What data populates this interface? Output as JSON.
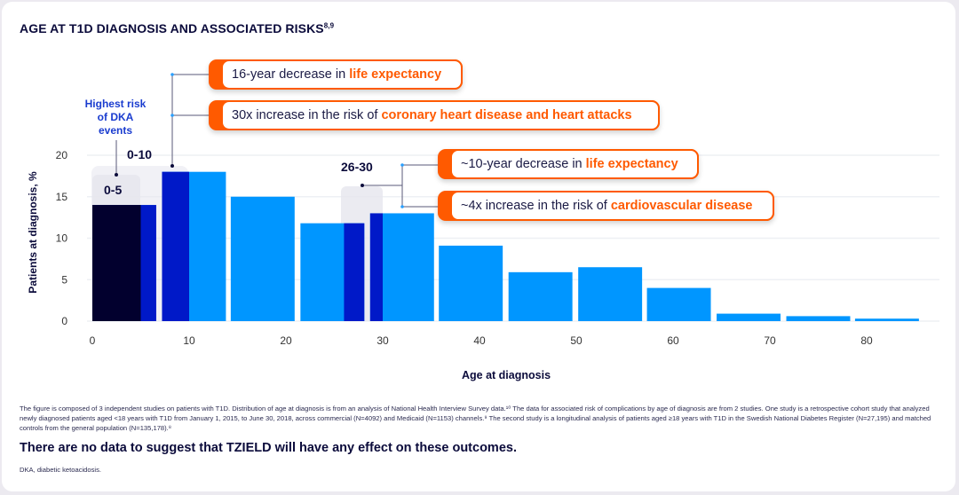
{
  "title": "AGE AT T1D DIAGNOSIS AND ASSOCIATED RISKS",
  "title_refs": "8,9",
  "colors": {
    "navy": "#02002e",
    "royal": "#0019c8",
    "light": "#0096ff",
    "orange": "#ff5a00",
    "highlight_box": "#e6e6ee"
  },
  "annotations": {
    "dka": "Highest risk of DKA events",
    "range_0_5": "0-5",
    "range_0_10": "0-10",
    "range_26_30": "26-30"
  },
  "callouts": [
    {
      "prefix": "16-year decrease in ",
      "highlight": "life expectancy"
    },
    {
      "prefix": "30x increase in the risk of ",
      "highlight": "coronary heart disease and heart attacks"
    },
    {
      "prefix": "~10-year decrease in ",
      "highlight": "life expectancy"
    },
    {
      "prefix": "~4x increase in the risk of ",
      "highlight": "cardiovascular disease"
    }
  ],
  "chart_data": {
    "type": "bar",
    "xlabel": "Age at diagnosis",
    "ylabel": "Patients at diagnosis, %",
    "xlim": [
      0,
      87
    ],
    "ylim": [
      0,
      20
    ],
    "xticks": [
      0,
      10,
      20,
      30,
      40,
      50,
      60,
      70,
      80
    ],
    "yticks": [
      0,
      5,
      10,
      15,
      20
    ],
    "grid": true,
    "bars": [
      {
        "age_start": 0,
        "age_end": 6.6,
        "value": 14.0
      },
      {
        "age_start": 7.2,
        "age_end": 13.8,
        "value": 18.0
      },
      {
        "age_start": 14.3,
        "age_end": 20.9,
        "value": 15.0
      },
      {
        "age_start": 21.5,
        "age_end": 28.1,
        "value": 11.8
      },
      {
        "age_start": 28.7,
        "age_end": 35.3,
        "value": 13.0
      },
      {
        "age_start": 35.8,
        "age_end": 42.4,
        "value": 9.1
      },
      {
        "age_start": 43.0,
        "age_end": 49.6,
        "value": 5.9
      },
      {
        "age_start": 50.2,
        "age_end": 56.8,
        "value": 6.5
      },
      {
        "age_start": 57.3,
        "age_end": 63.9,
        "value": 4.0
      },
      {
        "age_start": 64.5,
        "age_end": 71.1,
        "value": 0.9
      },
      {
        "age_start": 71.7,
        "age_end": 78.3,
        "value": 0.6
      },
      {
        "age_start": 78.8,
        "age_end": 85.4,
        "value": 0.3
      }
    ],
    "highlight_ranges": [
      {
        "label": "0-5",
        "from": 0,
        "to": 5,
        "color": "navy"
      },
      {
        "label": "0-10",
        "from": 0,
        "to": 10,
        "color": "royal"
      },
      {
        "label": "26-30",
        "from": 26,
        "to": 30,
        "color": "royal"
      }
    ]
  },
  "footnote": "The figure is composed of 3 independent studies on patients with T1D. Distribution of age at diagnosis is from an analysis of National Health Interview Survey data.¹⁰ The data for associated risk of complications by age of diagnosis are from 2 studies. One study is a retrospective cohort study that analyzed newly diagnosed patients aged <18 years with T1D from January 1, 2015, to June 30, 2018, across commercial (N=4092) and Medicaid (N=1153) channels.⁹ The second study is a longitudinal analysis of patients aged ≥18 years with T1D in the Swedish National Diabetes Register (N=27,195) and matched controls from the general population (N=135,178).⁸",
  "note": "There are no data to suggest that TZIELD will have any effect on these outcomes.",
  "abbreviation": "DKA, diabetic ketoacidosis."
}
